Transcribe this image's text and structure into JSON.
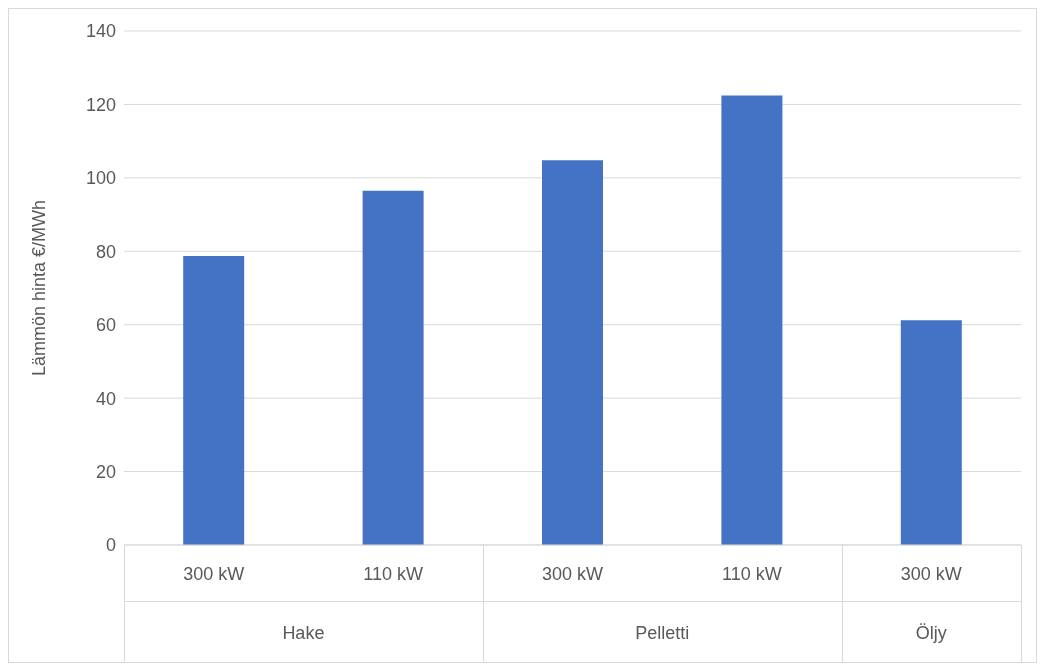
{
  "chart_data": {
    "type": "bar",
    "ylabel": "Lämmön hinta €/MWh",
    "categories": [
      "300 kW",
      "110 kW",
      "300 kW",
      "110 kW",
      "300 kW"
    ],
    "values": [
      78.7,
      96.5,
      104.8,
      122.4,
      61.2
    ],
    "color": "#4472c4",
    "ylim": [
      0,
      140
    ],
    "yticks": [
      0,
      20,
      40,
      60,
      80,
      100,
      120,
      140
    ],
    "grid": "y",
    "annotations": [
      "Hake",
      "Pelletti",
      "Öljy"
    ]
  }
}
